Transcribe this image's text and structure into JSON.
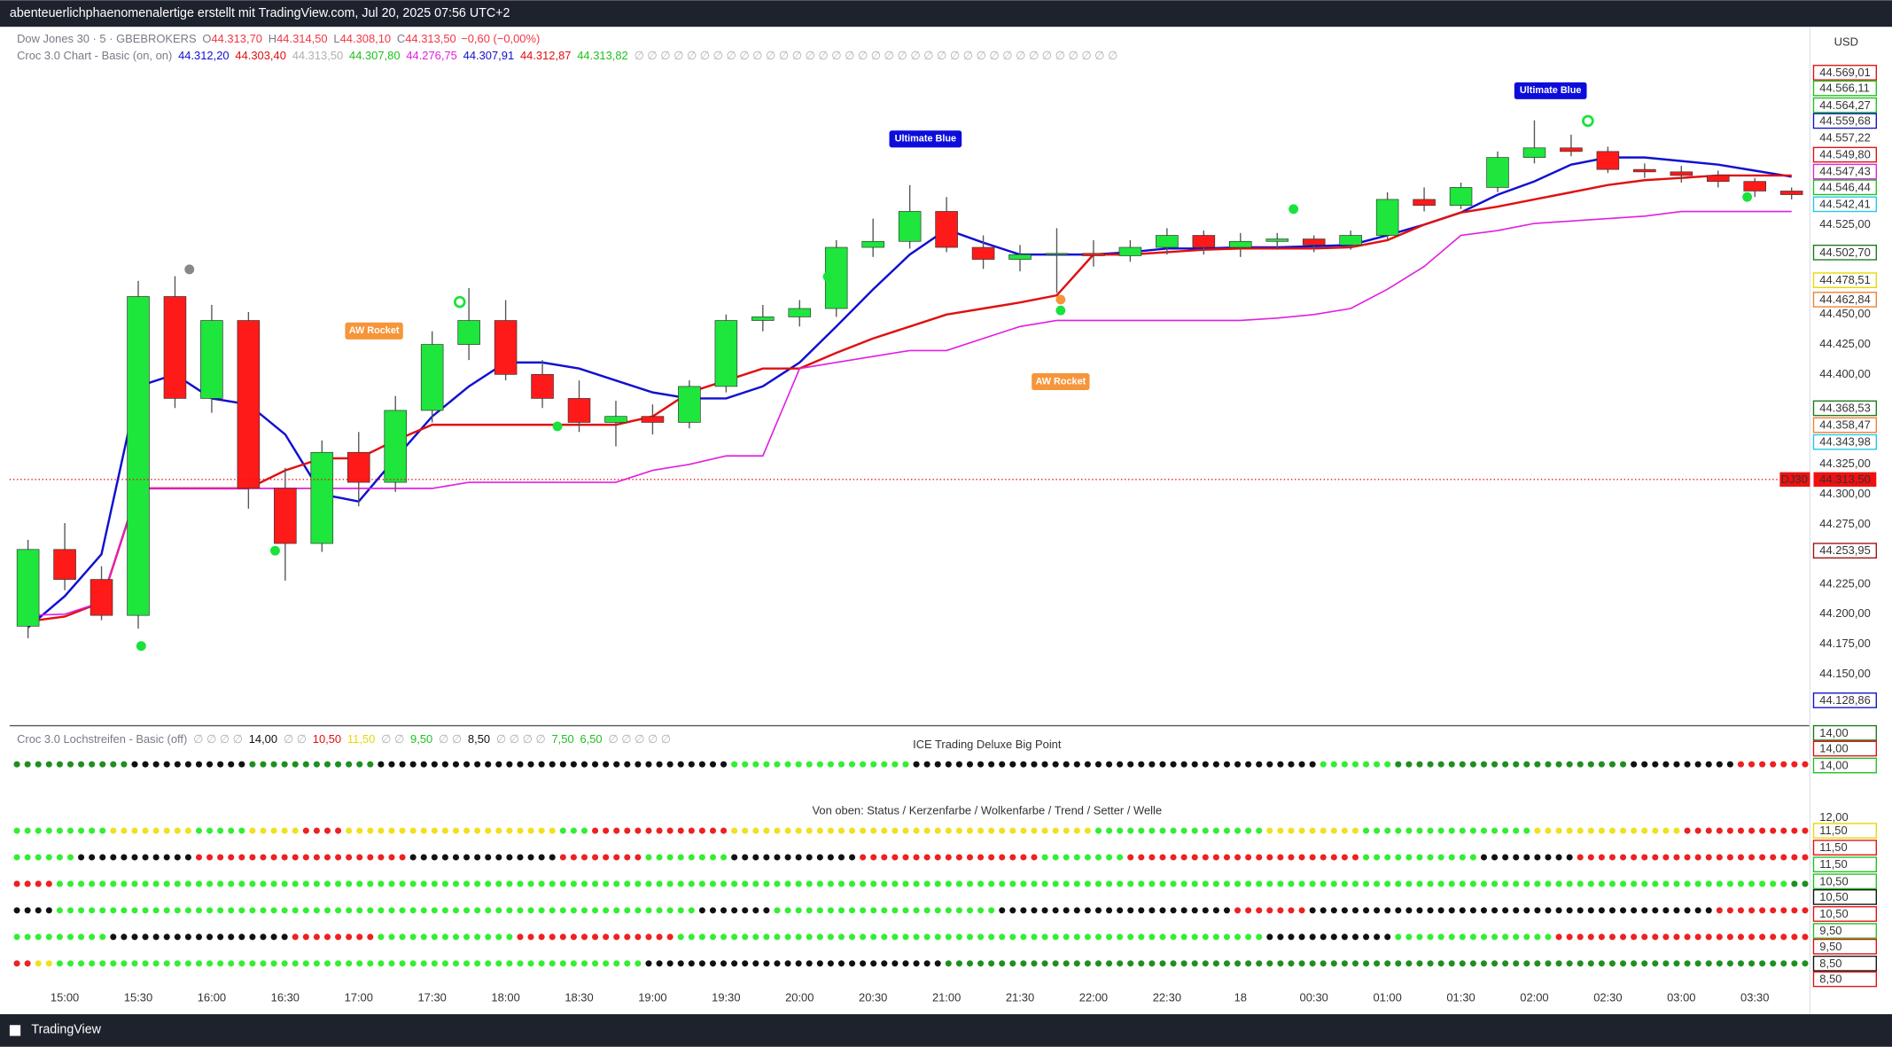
{
  "header": {
    "text": "abenteuerlichphaenomenalertige erstellt mit TradingView.com, Jul 20, 2025 07:56 UTC+2"
  },
  "legend_main": {
    "symbol": "Dow Jones 30 · 5 · GBEBROKERS",
    "fields": [
      {
        "key": "O",
        "value": "44.313,70"
      },
      {
        "key": "H",
        "value": "44.314,50"
      },
      {
        "key": "L",
        "value": "44.308,10"
      },
      {
        "key": "C",
        "value": "44.313,50"
      }
    ],
    "change": "−0,60 (−0,00%)",
    "color": "#f23645"
  },
  "legend_croc": {
    "name": "Croc 3.0 Chart - Basic (on, on)",
    "items": [
      {
        "text": "44.312,20",
        "color": "#1010d0"
      },
      {
        "text": "44.303,40",
        "color": "#e01010"
      },
      {
        "text": "44.313,50",
        "color": "#b0b0b0"
      },
      {
        "text": "44.307,80",
        "color": "#20c020"
      },
      {
        "text": "44.276,75",
        "color": "#e020e0"
      },
      {
        "text": "44.307,91",
        "color": "#1010d0"
      },
      {
        "text": "44.312,87",
        "color": "#e01010"
      },
      {
        "text": "44.313,82",
        "color": "#20c020"
      },
      {
        "text": "∅ ∅ ∅ ∅ ∅ ∅ ∅ ∅ ∅ ∅ ∅ ∅ ∅ ∅ ∅ ∅ ∅ ∅ ∅ ∅ ∅ ∅ ∅ ∅ ∅ ∅ ∅ ∅ ∅ ∅ ∅ ∅ ∅ ∅ ∅ ∅ ∅",
        "color": "#b0b0b0"
      }
    ]
  },
  "chart_data": {
    "type": "candlestick",
    "categories": [
      null,
      "15:00",
      null,
      "15:30",
      null,
      "16:00",
      null,
      "16:30",
      null,
      "17:00",
      null,
      "17:30",
      null,
      "18:00",
      null,
      "18:30",
      null,
      "19:00",
      null,
      "19:30",
      null,
      "20:00",
      null,
      "20:30",
      null,
      "21:00",
      null,
      "21:30",
      null,
      "22:00",
      null,
      "22:30",
      null,
      "18",
      null,
      "00:30",
      null,
      "01:00",
      null,
      "01:30",
      null,
      "02:00",
      null,
      "02:30",
      null,
      "03:00",
      null,
      "03:30",
      null
    ],
    "open": [
      44190,
      44254,
      44229,
      44199,
      44465,
      44380,
      44445,
      44305,
      44259,
      44335,
      44310,
      44370,
      44425,
      44445,
      44400,
      44380,
      44360,
      44365,
      44360,
      44390,
      44445,
      44448,
      44455,
      44506,
      44511,
      44536,
      44506,
      44496,
      44500,
      44501,
      44499,
      44506,
      44516,
      44506,
      44511,
      44513,
      44508,
      44516,
      44546,
      44541,
      44556,
      44581,
      44589,
      44586,
      44571,
      44569,
      44566,
      44561,
      44553
    ],
    "high": [
      44262,
      44276,
      44240,
      44478,
      44482,
      44458,
      44452,
      44322,
      44345,
      44352,
      44382,
      44436,
      44472,
      44462,
      44412,
      44395,
      44378,
      44375,
      44395,
      44450,
      44458,
      44462,
      44512,
      44530,
      44558,
      44548,
      44516,
      44508,
      44522,
      44512,
      44512,
      44522,
      44520,
      44518,
      44518,
      44516,
      44520,
      44552,
      44556,
      44560,
      44586,
      44612,
      44600,
      44590,
      44576,
      44574,
      44570,
      44564,
      44556
    ],
    "low": [
      44180,
      44220,
      44195,
      44188,
      44372,
      44368,
      44288,
      44228,
      44252,
      44290,
      44302,
      44360,
      44412,
      44395,
      44372,
      44352,
      44340,
      44350,
      44355,
      44385,
      44436,
      44440,
      44448,
      44498,
      44505,
      44502,
      44488,
      44486,
      44468,
      44490,
      44494,
      44500,
      44500,
      44498,
      44504,
      44502,
      44504,
      44512,
      44536,
      44538,
      44552,
      44576,
      44582,
      44568,
      44564,
      44560,
      44556,
      44548,
      44546
    ],
    "close": [
      44254,
      44229,
      44199,
      44465,
      44380,
      44445,
      44305,
      44259,
      44335,
      44310,
      44370,
      44425,
      44445,
      44400,
      44380,
      44360,
      44365,
      44360,
      44390,
      44445,
      44448,
      44455,
      44506,
      44511,
      44536,
      44506,
      44496,
      44500,
      44501,
      44499,
      44506,
      44516,
      44506,
      44511,
      44513,
      44508,
      44516,
      44546,
      44541,
      44556,
      44581,
      44589,
      44586,
      44571,
      44569,
      44566,
      44561,
      44553,
      44550
    ],
    "up_color": "#1ee63c",
    "down_color": "#ff1a1a",
    "lines": [
      {
        "color": "#1010d0",
        "values": [
          44189,
          44215,
          44250,
          44390,
          44400,
          44380,
          44375,
          44350,
          44300,
          44294,
          44330,
          44365,
          44390,
          44410,
          44410,
          44405,
          44395,
          44385,
          44380,
          44380,
          44390,
          44410,
          44440,
          44471,
          44500,
          44521,
          44510,
          44500,
          44500,
          44500,
          44502,
          44505,
          44505,
          44506,
          44506,
          44507,
          44508,
          44516,
          44525,
          44535,
          44550,
          44561,
          44575,
          44581,
          44581,
          44578,
          44575,
          44570,
          44565
        ]
      },
      {
        "color": "#e01010",
        "values": [
          44194,
          44198,
          44210,
          44305,
          44305,
          44305,
          44305,
          44320,
          44330,
          44330,
          44345,
          44358,
          44358,
          44358,
          44358,
          44358,
          44358,
          44365,
          44385,
          44395,
          44405,
          44405,
          44418,
          44430,
          44440,
          44450,
          44455,
          44460,
          44466,
          44500,
          44500,
          44502,
          44504,
          44505,
          44505,
          44505,
          44506,
          44512,
          44525,
          44535,
          44540,
          44546,
          44552,
          44558,
          44562,
          44564,
          44566,
          44566,
          44566
        ]
      },
      {
        "color": "#e020e0",
        "values": [
          44199,
          44200,
          44210,
          44305,
          44305,
          44305,
          44305,
          44305,
          44305,
          44305,
          44305,
          44305,
          44310,
          44310,
          44310,
          44310,
          44310,
          44320,
          44325,
          44332,
          44332,
          44405,
          44410,
          44415,
          44420,
          44420,
          44430,
          44440,
          44445,
          44445,
          44445,
          44445,
          44445,
          44445,
          44447,
          44450,
          44455,
          44471,
          44490,
          44516,
          44520,
          44526,
          44528,
          44530,
          44532,
          44536,
          44536,
          44536,
          44536
        ]
      }
    ],
    "ylim": [
      44108,
      44687
    ],
    "yticks": [
      {
        "value": 44150,
        "label": "44.150,00"
      },
      {
        "value": 44175,
        "label": "44.175,00"
      },
      {
        "value": 44200,
        "label": "44.200,00"
      },
      {
        "value": 44225,
        "label": "44.225,00"
      },
      {
        "value": 44275,
        "label": "44.275,00"
      },
      {
        "value": 44300,
        "label": "44.300,00"
      },
      {
        "value": 44325,
        "label": "44.325,00"
      },
      {
        "value": 44400,
        "label": "44.400,00"
      },
      {
        "value": 44425,
        "label": "44.425,00"
      },
      {
        "value": 44450,
        "label": "44.450,00"
      },
      {
        "value": 44525,
        "label": "44.525,00"
      }
    ],
    "grid": false
  },
  "annotations": [
    "AW Rocket",
    "AW Rocket",
    "Ultimate Blue",
    "Ultimate Blue"
  ],
  "currency": "USD",
  "price_badges": [
    {
      "label": "44.569,01",
      "color": "#e01010"
    },
    {
      "label": "44.566,11",
      "color": "#20c020"
    },
    {
      "label": "44.564,27",
      "color": "#20c020"
    },
    {
      "label": "44.559,68",
      "color": "#1010d0"
    },
    {
      "label": "44.557,22",
      "color": "#a0a0a0",
      "style": "plain"
    },
    {
      "label": "44.549,80",
      "color": "#e01010"
    },
    {
      "label": "44.547,43",
      "color": "#e020e0"
    },
    {
      "label": "44.546,44",
      "color": "#20c020"
    },
    {
      "label": "44.542,41",
      "color": "#20c8e8"
    },
    {
      "label": "44.502,70",
      "color": "#1a7a1a"
    },
    {
      "label": "44.478,51",
      "color": "#e8d800"
    },
    {
      "label": "44.462,84",
      "color": "#f08030"
    },
    {
      "label": "44.368,53",
      "color": "#1a7a1a"
    },
    {
      "label": "44.358,47",
      "color": "#f08030"
    },
    {
      "label": "44.343,98",
      "color": "#20c8e8"
    },
    {
      "label": "44.253,95",
      "color": "#a01010"
    },
    {
      "label": "44.128,86",
      "color": "#1010d0"
    }
  ],
  "current_price": {
    "symbol": "DJ30",
    "label": "44.313,50",
    "color": "#f01010"
  },
  "lower_pane": {
    "legend": {
      "name": "Croc 3.0 Lochstreifen - Basic (off)",
      "items": [
        {
          "text": "∅ ∅ ∅ ∅",
          "color": "#b0b0b0"
        },
        {
          "text": "14,00",
          "color": "#111111"
        },
        {
          "text": "∅ ∅",
          "color": "#b0b0b0"
        },
        {
          "text": "10,50",
          "color": "#e01010"
        },
        {
          "text": "11,50",
          "color": "#e8d800"
        },
        {
          "text": "∅ ∅",
          "color": "#b0b0b0"
        },
        {
          "text": "9,50",
          "color": "#20c020"
        },
        {
          "text": "∅ ∅",
          "color": "#b0b0b0"
        },
        {
          "text": "8,50",
          "color": "#111111"
        },
        {
          "text": "∅ ∅ ∅ ∅",
          "color": "#b0b0b0"
        },
        {
          "text": "7,50",
          "color": "#20c020"
        },
        {
          "text": "6,50",
          "color": "#20c020"
        },
        {
          "text": "∅ ∅ ∅ ∅ ∅",
          "color": "#b0b0b0"
        }
      ]
    },
    "title": "ICE Trading Deluxe Big Point",
    "subtitle": "Von oben: Status / Kerzenfarbe / Wolkenfarbe / Trend / Setter / Welle",
    "badges": [
      {
        "label": "14,00",
        "color": "#1a7a1a"
      },
      {
        "label": "14,00",
        "color": "#e01010"
      },
      {
        "label": "14,00",
        "color": "#20c020"
      },
      {
        "label": "12,00",
        "color": "#a0a0a0",
        "style": "plain"
      },
      {
        "label": "11,50",
        "color": "#e8d800"
      },
      {
        "label": "11,50",
        "color": "#e01010"
      },
      {
        "label": "11,50",
        "color": "#20c020"
      },
      {
        "label": "10,50",
        "color": "#20c020"
      },
      {
        "label": "10,50",
        "color": "#111111"
      },
      {
        "label": "10,50",
        "color": "#e01010"
      },
      {
        "label": "9,50",
        "color": "#20c020"
      },
      {
        "label": "9,50",
        "color": "#e01010"
      },
      {
        "label": "8,50",
        "color": "#111111"
      },
      {
        "label": "8,50",
        "color": "#e01010"
      }
    ]
  },
  "footer": "TradingView"
}
